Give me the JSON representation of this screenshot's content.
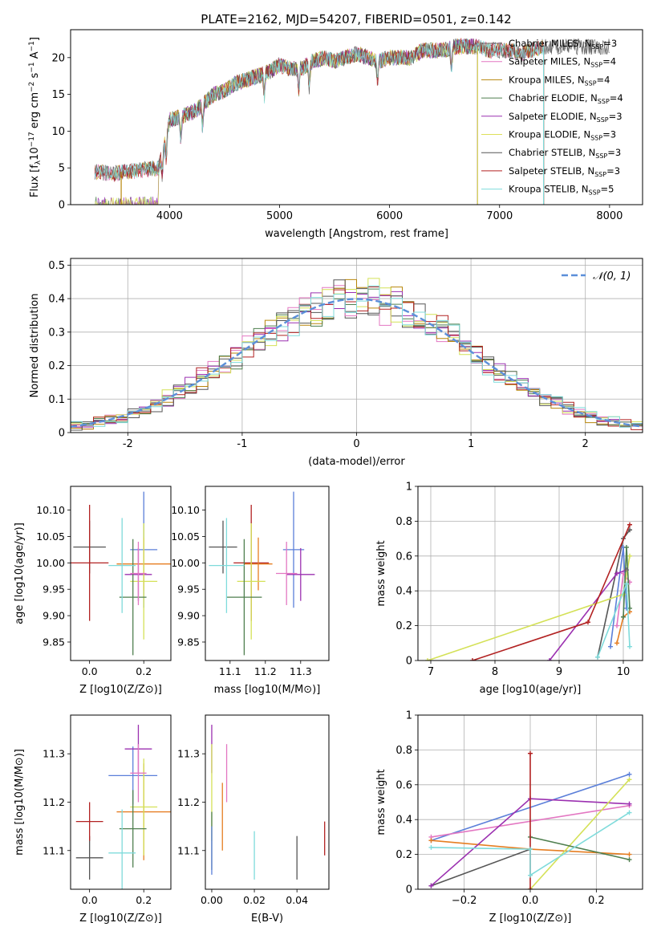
{
  "figure_title": "PLATE=2162, MJD=54207, FIBERID=0501, z=0.142",
  "colors": {
    "series": [
      "#6d6d6d",
      "#e377c2",
      "#b8860b",
      "#4f7f4f",
      "#9b30b0",
      "#dde05a",
      "#555555",
      "#b22222",
      "#7fdbdb"
    ],
    "models9": [
      "#555555",
      "#e377c2",
      "#b8860b",
      "#4f7f4f",
      "#9b30b0",
      "#d4e157",
      "#555555",
      "#b22222",
      "#7fdbdb"
    ],
    "p6": [
      "#555555",
      "#5b7fd9",
      "#e377c2",
      "#e67e22",
      "#9b30b0",
      "#d4e157",
      "#4f7f4f",
      "#7fdbdb",
      "#b22222"
    ],
    "normal": "#5b8fd9"
  },
  "chart_data": [
    {
      "id": "spectrum",
      "type": "line",
      "title": "PLATE=2162, MJD=54207, FIBERID=0501, z=0.142",
      "xlabel": "wavelength [Angstrom, rest frame]",
      "ylabel": "Flux [f_λ 10^-17 erg cm^-2 s^-1 A^-1]",
      "xlim": [
        3100,
        8300
      ],
      "ylim": [
        0,
        23.8
      ],
      "xticks": [
        4000,
        5000,
        6000,
        7000,
        8000
      ],
      "yticks": [
        0,
        5,
        10,
        15,
        20
      ],
      "legend_position": "top-right",
      "legend": [
        "Chabrier MILES, N_SSP=3",
        "Salpeter MILES, N_SSP=4",
        "Kroupa MILES, N_SSP=4",
        "Chabrier ELODIE, N_SSP=4",
        "Salpeter ELODIE, N_SSP=3",
        "Kroupa ELODIE, N_SSP=3",
        "Chabrier STELIB, N_SSP=3",
        "Salpeter STELIB, N_SSP=3",
        "Kroupa STELIB, N_SSP=5"
      ],
      "envelope": {
        "x": [
          3320,
          3500,
          3600,
          3700,
          3800,
          3900,
          3950,
          4000,
          4100,
          4200,
          4300,
          4400,
          4500,
          4600,
          4700,
          4800,
          4900,
          5000,
          5100,
          5200,
          5300,
          5400,
          5500,
          5600,
          5700,
          5800,
          5900,
          6000,
          6100,
          6200,
          6300,
          6400,
          6500,
          6600,
          6700,
          6800,
          6900,
          7000,
          7100,
          7200,
          7300,
          7400
        ],
        "y": [
          4.5,
          4.2,
          4.5,
          4.6,
          4.8,
          5.0,
          8.0,
          11.5,
          12.0,
          12.5,
          13.5,
          15.0,
          15.5,
          16.5,
          17.0,
          17.5,
          18.0,
          19.0,
          18.5,
          18.5,
          19.5,
          20.0,
          19.5,
          20.0,
          20.5,
          20.0,
          19.5,
          20.0,
          20.0,
          20.0,
          21.0,
          21.0,
          21.0,
          21.5,
          21.5,
          21.5,
          21.0,
          21.0,
          21.0,
          20.5,
          21.0,
          21.5
        ]
      },
      "model_ranges": [
        {
          "series": "Chabrier MILES, N_SSP=3",
          "x": [
            3320,
            8000
          ]
        },
        {
          "series": "Salpeter MILES, N_SSP=4",
          "x": [
            3320,
            7400
          ]
        },
        {
          "series": "Kroupa MILES, N_SSP=4",
          "x": [
            3320,
            7400
          ]
        },
        {
          "series": "Chabrier ELODIE, N_SSP=4",
          "x": [
            3900,
            6800
          ]
        },
        {
          "series": "Salpeter ELODIE, N_SSP=3",
          "x": [
            3900,
            6800
          ]
        },
        {
          "series": "Kroupa ELODIE, N_SSP=3",
          "x": [
            3900,
            6800
          ]
        },
        {
          "series": "Chabrier STELIB, N_SSP=3",
          "x": [
            3320,
            8000
          ]
        },
        {
          "series": "Salpeter STELIB, N_SSP=3",
          "x": [
            3320,
            7400
          ]
        },
        {
          "series": "Kroupa STELIB, N_SSP=5",
          "x": [
            3320,
            7400
          ]
        }
      ]
    },
    {
      "id": "residuals",
      "type": "step",
      "xlabel": "(data-model)/error",
      "ylabel": "Normed distribution",
      "xlim": [
        -2.5,
        2.5
      ],
      "ylim": [
        0,
        0.52
      ],
      "xticks": [
        -2,
        -1,
        0,
        1,
        2
      ],
      "yticks": [
        0.0,
        0.1,
        0.2,
        0.3,
        0.4,
        0.5
      ],
      "grid": true,
      "legend_position": "top-right",
      "legend": [
        "𝒩(0, 1)"
      ],
      "bin_width": 0.1
    },
    {
      "id": "age_vs_Z",
      "type": "errorbar",
      "xlabel": "Z [log10(Z/Z⊙)]",
      "ylabel": "age [log10(age/yr)]",
      "xlim": [
        -0.07,
        0.3
      ],
      "ylim": [
        9.815,
        10.145
      ],
      "xticks": [
        0.0,
        0.2
      ],
      "xticklabels": [
        "0.0",
        "0.2"
      ],
      "yticks": [
        9.85,
        9.9,
        9.95,
        10.0,
        10.05,
        10.1
      ],
      "yticklabels": [
        "9.85",
        "9.90",
        "9.95",
        "10.00",
        "10.05",
        "10.10"
      ],
      "points": [
        {
          "x": 0.0,
          "xerr": 0.06,
          "y": 10.03,
          "yerr": 0.05
        },
        {
          "x": 0.0,
          "xerr": 0.07,
          "y": 10.0,
          "yerr": 0.11
        },
        {
          "x": 0.2,
          "xerr": 0.05,
          "y": 10.025,
          "yerr": 0.11
        },
        {
          "x": 0.2,
          "xerr": 0.1,
          "y": 9.998,
          "yerr": 0.05
        },
        {
          "x": 0.18,
          "xerr": 0.05,
          "y": 9.978,
          "yerr": 0.05
        },
        {
          "x": 0.2,
          "xerr": 0.05,
          "y": 9.965,
          "yerr": 0.11
        },
        {
          "x": 0.16,
          "xerr": 0.05,
          "y": 9.935,
          "yerr": 0.11
        },
        {
          "x": 0.12,
          "xerr": 0.05,
          "y": 9.995,
          "yerr": 0.09
        },
        {
          "x": 0.18,
          "xerr": 0.03,
          "y": 9.98,
          "yerr": 0.06
        }
      ]
    },
    {
      "id": "age_vs_mass",
      "type": "errorbar",
      "xlabel": "mass [log10(M/M⊙)]",
      "ylabel": "",
      "xlim": [
        11.03,
        11.38
      ],
      "ylim": [
        9.815,
        10.145
      ],
      "xticks": [
        11.1,
        11.2,
        11.3
      ],
      "xticklabels": [
        "11.1",
        "11.2",
        "11.3"
      ],
      "yticks": [
        9.85,
        9.9,
        9.95,
        10.0,
        10.05,
        10.1
      ],
      "yticklabels": [
        "9.85",
        "9.90",
        "9.95",
        "10.00",
        "10.05",
        "10.10"
      ],
      "points": [
        {
          "x": 11.08,
          "xerr": 0.04,
          "y": 10.03,
          "yerr": 0.05
        },
        {
          "x": 11.16,
          "xerr": 0.05,
          "y": 10.0,
          "yerr": 0.11
        },
        {
          "x": 11.28,
          "xerr": 0.03,
          "y": 10.025,
          "yerr": 0.11
        },
        {
          "x": 11.18,
          "xerr": 0.04,
          "y": 9.998,
          "yerr": 0.05
        },
        {
          "x": 11.3,
          "xerr": 0.04,
          "y": 9.978,
          "yerr": 0.05
        },
        {
          "x": 11.16,
          "xerr": 0.04,
          "y": 9.965,
          "yerr": 0.11
        },
        {
          "x": 11.14,
          "xerr": 0.05,
          "y": 9.935,
          "yerr": 0.11
        },
        {
          "x": 11.09,
          "xerr": 0.05,
          "y": 9.995,
          "yerr": 0.09
        },
        {
          "x": 11.26,
          "xerr": 0.03,
          "y": 9.98,
          "yerr": 0.06
        }
      ]
    },
    {
      "id": "weight_vs_age",
      "type": "line",
      "xlabel": "age [log10(age/yr)]",
      "ylabel": "mass weight",
      "xlim": [
        6.8,
        10.3
      ],
      "ylim": [
        0,
        1
      ],
      "xticks": [
        7,
        8,
        9,
        10
      ],
      "yticks": [
        0.0,
        0.2,
        0.4,
        0.6,
        0.8,
        1.0
      ],
      "grid": true,
      "series": [
        {
          "points": [
            [
              9.6,
              0.02
            ],
            [
              10.0,
              0.7
            ],
            [
              10.1,
              0.75
            ]
          ]
        },
        {
          "points": [
            [
              9.8,
              0.08
            ],
            [
              10.0,
              0.65
            ],
            [
              10.05,
              0.3
            ]
          ]
        },
        {
          "points": [
            [
              9.9,
              0.2
            ],
            [
              10.0,
              0.5
            ],
            [
              10.1,
              0.45
            ]
          ]
        },
        {
          "points": [
            [
              9.9,
              0.1
            ],
            [
              10.0,
              0.25
            ],
            [
              10.1,
              0.28
            ]
          ]
        },
        {
          "points": [
            [
              8.85,
              0.0
            ],
            [
              9.9,
              0.5
            ],
            [
              10.05,
              0.52
            ]
          ]
        },
        {
          "points": [
            [
              6.95,
              0.0
            ],
            [
              10.0,
              0.38
            ],
            [
              10.1,
              0.6
            ]
          ]
        },
        {
          "points": [
            [
              10.0,
              0.25
            ],
            [
              10.05,
              0.65
            ],
            [
              10.1,
              0.3
            ]
          ]
        },
        {
          "points": [
            [
              7.65,
              0.0
            ],
            [
              9.45,
              0.22
            ],
            [
              10.1,
              0.78
            ]
          ]
        },
        {
          "points": [
            [
              9.6,
              0.02
            ],
            [
              10.05,
              0.44
            ],
            [
              10.1,
              0.08
            ]
          ]
        }
      ]
    },
    {
      "id": "mass_vs_Z",
      "type": "errorbar",
      "xlabel": "Z [log10(Z/Z⊙)]",
      "ylabel": "mass [log10(M/M⊙)]",
      "xlim": [
        -0.07,
        0.3
      ],
      "ylim": [
        11.02,
        11.38
      ],
      "xticks": [
        0.0,
        0.2
      ],
      "xticklabels": [
        "0.0",
        "0.2"
      ],
      "yticks": [
        11.1,
        11.2,
        11.3
      ],
      "yticklabels": [
        "11.1",
        "11.2",
        "11.3"
      ],
      "points": [
        {
          "x": 0.0,
          "xerr": 0.05,
          "y": 11.085,
          "yerr": 0.045
        },
        {
          "x": 0.0,
          "xerr": 0.05,
          "y": 11.16,
          "yerr": 0.04
        },
        {
          "x": 0.16,
          "xerr": 0.09,
          "y": 11.255,
          "yerr": 0.06
        },
        {
          "x": 0.2,
          "xerr": 0.1,
          "y": 11.18,
          "yerr": 0.1
        },
        {
          "x": 0.18,
          "xerr": 0.05,
          "y": 11.31,
          "yerr": 0.05
        },
        {
          "x": 0.2,
          "xerr": 0.05,
          "y": 11.19,
          "yerr": 0.1
        },
        {
          "x": 0.16,
          "xerr": 0.05,
          "y": 11.145,
          "yerr": 0.08
        },
        {
          "x": 0.12,
          "xerr": 0.05,
          "y": 11.095,
          "yerr": 0.09
        },
        {
          "x": 0.18,
          "xerr": 0.03,
          "y": 11.26,
          "yerr": 0.06
        }
      ]
    },
    {
      "id": "mass_vs_EBV",
      "type": "errorbar",
      "xlabel": "E(B-V)",
      "ylabel": "",
      "xlim": [
        -0.003,
        0.055
      ],
      "ylim": [
        11.02,
        11.38
      ],
      "xticks": [
        0.0,
        0.02,
        0.04
      ],
      "xticklabels": [
        "0.00",
        "0.02",
        "0.04"
      ],
      "yticks": [
        11.1,
        11.2,
        11.3
      ],
      "yticklabels": [
        "11.1",
        "11.2",
        "11.3"
      ],
      "points": [
        {
          "x": 0.0,
          "xerr": 0,
          "y": 11.31,
          "yerr": 0.05
        },
        {
          "x": 0.0,
          "xerr": 0,
          "y": 11.22,
          "yerr": 0.1
        },
        {
          "x": 0.007,
          "xerr": 0,
          "y": 11.26,
          "yerr": 0.06
        },
        {
          "x": 0.005,
          "xerr": 0,
          "y": 11.17,
          "yerr": 0.07
        },
        {
          "x": 0.0,
          "xerr": 0,
          "y": 11.12,
          "yerr": 0.06
        },
        {
          "x": 0.02,
          "xerr": 0,
          "y": 11.09,
          "yerr": 0.05
        },
        {
          "x": 0.04,
          "xerr": 0,
          "y": 11.085,
          "yerr": 0.045
        },
        {
          "x": 0.053,
          "xerr": 0,
          "y": 11.125,
          "yerr": 0.035
        },
        {
          "x": 0.0,
          "xerr": 0,
          "y": 11.1,
          "yerr": 0.05
        }
      ]
    },
    {
      "id": "weight_vs_Z",
      "type": "line",
      "xlabel": "Z [log10(Z/Z⊙)]",
      "ylabel": "mass weight",
      "xlim": [
        -0.34,
        0.34
      ],
      "ylim": [
        0,
        1
      ],
      "xticks": [
        -0.2,
        0.0,
        0.2
      ],
      "xticklabels": [
        "−0.2",
        "0.0",
        "0.2"
      ],
      "yticks": [
        0.0,
        0.2,
        0.4,
        0.6,
        0.8,
        1.0
      ],
      "grid": true,
      "series": [
        {
          "points": [
            [
              -0.3,
              0.02
            ],
            [
              0.0,
              0.23
            ]
          ]
        },
        {
          "points": [
            [
              -0.3,
              0.28
            ],
            [
              0.3,
              0.66
            ]
          ]
        },
        {
          "points": [
            [
              -0.3,
              0.3
            ],
            [
              0.3,
              0.48
            ]
          ]
        },
        {
          "points": [
            [
              -0.3,
              0.28
            ],
            [
              0.0,
              0.23
            ],
            [
              0.3,
              0.2
            ]
          ]
        },
        {
          "points": [
            [
              -0.3,
              0.02
            ],
            [
              0.0,
              0.52
            ],
            [
              0.3,
              0.49
            ]
          ]
        },
        {
          "points": [
            [
              0.0,
              0.0
            ],
            [
              0.3,
              0.63
            ]
          ]
        },
        {
          "points": [
            [
              0.0,
              0.3
            ],
            [
              0.3,
              0.17
            ]
          ]
        },
        {
          "points": [
            [
              0.0,
              0.78
            ],
            [
              0.0,
              0.0
            ]
          ]
        },
        {
          "points": [
            [
              -0.3,
              0.24
            ],
            [
              0.0,
              0.23
            ],
            [
              0.0,
              0.08
            ],
            [
              0.3,
              0.44
            ]
          ]
        }
      ]
    }
  ]
}
